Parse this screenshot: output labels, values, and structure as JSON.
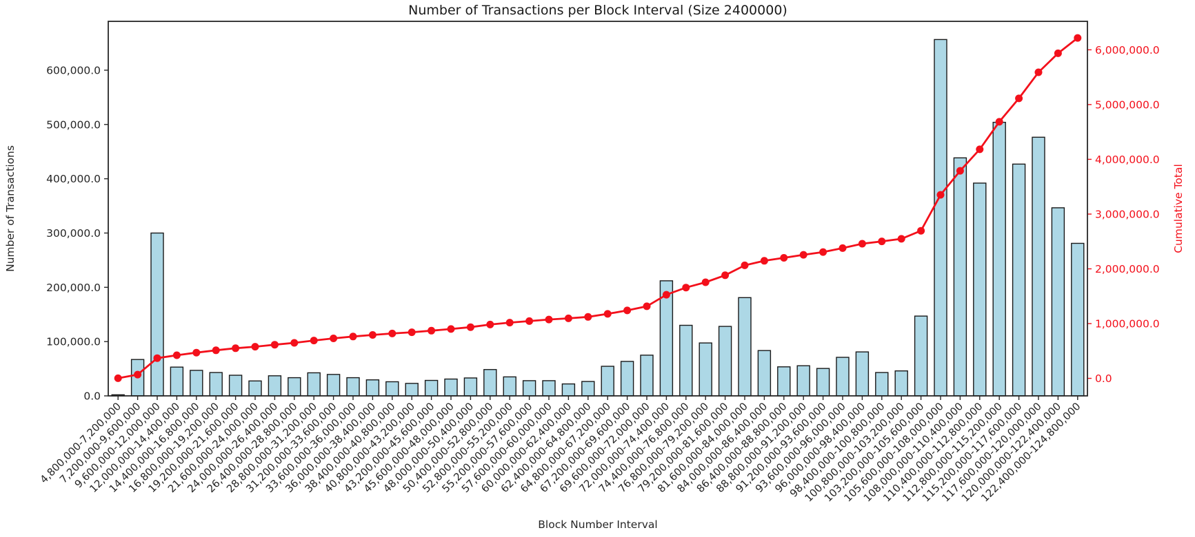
{
  "chart_data": {
    "type": "bar+line",
    "title": "Number of Transactions per Block Interval (Size 2400000)",
    "xlabel": "Block Number Interval",
    "ylabel_left": "Number of Transactions",
    "ylabel_right": "Cumulative Total",
    "grid": false,
    "legend": "none",
    "categories": [
      "4,800,000-7,200,000",
      "7,200,000-9,600,000",
      "9,600,000-12,000,000",
      "12,000,000-14,400,000",
      "14,400,000-16,800,000",
      "16,800,000-19,200,000",
      "19,200,000-21,600,000",
      "21,600,000-24,000,000",
      "24,000,000-26,400,000",
      "26,400,000-28,800,000",
      "28,800,000-31,200,000",
      "31,200,000-33,600,000",
      "33,600,000-36,000,000",
      "36,000,000-38,400,000",
      "38,400,000-40,800,000",
      "40,800,000-43,200,000",
      "43,200,000-45,600,000",
      "45,600,000-48,000,000",
      "48,000,000-50,400,000",
      "50,400,000-52,800,000",
      "52,800,000-55,200,000",
      "55,200,000-57,600,000",
      "57,600,000-60,000,000",
      "60,000,000-62,400,000",
      "62,400,000-64,800,000",
      "64,800,000-67,200,000",
      "67,200,000-69,600,000",
      "69,600,000-72,000,000",
      "72,000,000-74,400,000",
      "74,400,000-76,800,000",
      "76,800,000-79,200,000",
      "79,200,000-81,600,000",
      "81,600,000-84,000,000",
      "84,000,000-86,400,000",
      "86,400,000-88,800,000",
      "88,800,000-91,200,000",
      "91,200,000-93,600,000",
      "93,600,000-96,000,000",
      "96,000,000-98,400,000",
      "98,400,000-100,800,000",
      "100,800,000-103,200,000",
      "103,200,000-105,600,000",
      "105,600,000-108,000,000",
      "108,000,000-110,400,000",
      "110,400,000-112,800,000",
      "112,800,000-115,200,000",
      "115,200,000-117,600,000",
      "117,600,000-120,000,000",
      "120,000,000-122,400,000",
      "122,400,000-124,800,000"
    ],
    "series": [
      {
        "name": "Number of Transactions",
        "type": "bar",
        "yaxis": "left",
        "values": [
          2000,
          67000,
          300000,
          53000,
          47000,
          43000,
          38000,
          27500,
          37000,
          33500,
          42500,
          39500,
          33500,
          29500,
          26000,
          23000,
          28500,
          31000,
          33000,
          48500,
          35000,
          28000,
          28000,
          22000,
          26500,
          54500,
          63500,
          75000,
          212000,
          130000,
          97500,
          128000,
          181000,
          83500,
          53500,
          55500,
          50500,
          71000,
          81000,
          43000,
          46000,
          147000,
          656500,
          438500,
          392000,
          504000,
          427000,
          476500,
          346500,
          281000
        ]
      },
      {
        "name": "Cumulative Total",
        "type": "line",
        "yaxis": "right",
        "values": [
          2000,
          69000,
          369000,
          422000,
          469000,
          512000,
          550000,
          577500,
          614500,
          648000,
          690500,
          730000,
          763500,
          793000,
          819000,
          842000,
          870500,
          901500,
          934500,
          983000,
          1018000,
          1046000,
          1074000,
          1096000,
          1122500,
          1177000,
          1240500,
          1315500,
          1527500,
          1657500,
          1755000,
          1883000,
          2064000,
          2147500,
          2201000,
          2256500,
          2307000,
          2378000,
          2459000,
          2502000,
          2548000,
          2695000,
          3351500,
          3790000,
          4182000,
          4686000,
          5113000,
          5589500,
          5936000,
          6217000
        ]
      }
    ],
    "left_axis": {
      "range": [
        0,
        690000
      ],
      "tick_values": [
        0,
        100000,
        200000,
        300000,
        400000,
        500000,
        600000
      ],
      "tick_labels": [
        "0.0",
        "100,000.0",
        "200,000.0",
        "300,000.0",
        "400,000.0",
        "500,000.0",
        "600,000.0"
      ]
    },
    "right_axis": {
      "range": [
        -320000,
        6520000
      ],
      "tick_values": [
        0,
        1000000,
        2000000,
        3000000,
        4000000,
        5000000,
        6000000
      ],
      "tick_labels": [
        "0.0",
        "1,000,000.0",
        "2,000,000.0",
        "3,000,000.0",
        "4,000,000.0",
        "5,000,000.0",
        "6,000,000.0"
      ]
    },
    "colors": {
      "bar_fill": "#add8e6",
      "bar_edge": "#1a1a1a",
      "line": "#f3101b",
      "axis": "#262626",
      "background": "#ffffff"
    }
  }
}
